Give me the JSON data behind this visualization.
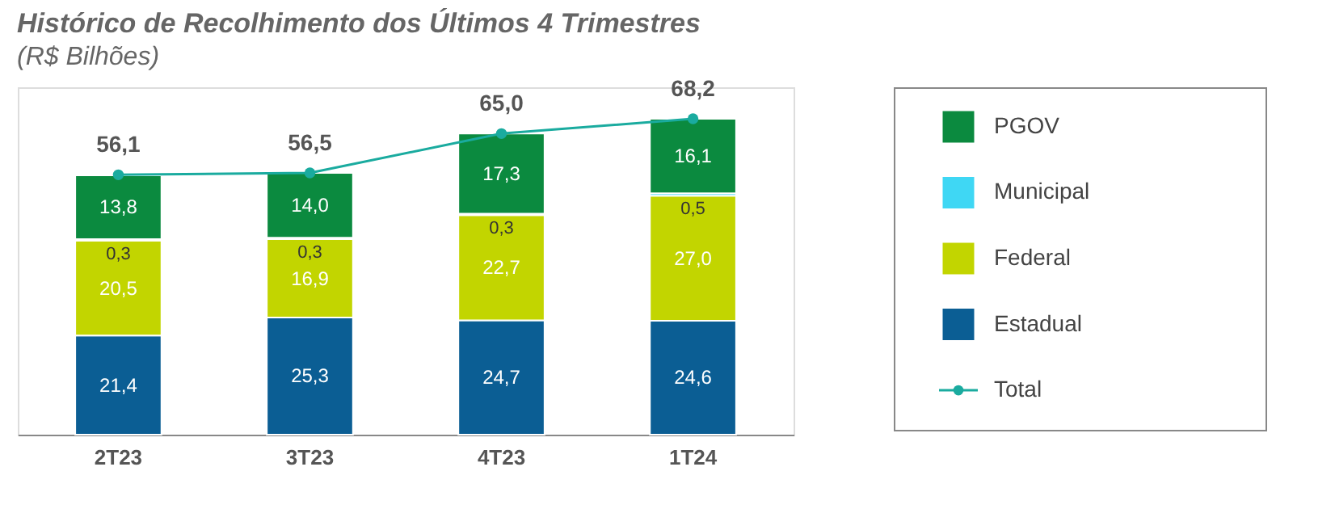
{
  "chart_data": {
    "type": "bar",
    "title": "Histórico de Recolhimento dos Últimos 4 Trimestres",
    "subtitle": "(R$ Bilhões)",
    "categories": [
      "2T23",
      "3T23",
      "4T23",
      "1T24"
    ],
    "stacked": true,
    "ylim": [
      0,
      75
    ],
    "tick_labels": "x",
    "legend": "right",
    "series": [
      {
        "name": "Estadual",
        "color": "#0b5e94",
        "values": [
          21.4,
          25.3,
          24.7,
          24.6
        ],
        "value_labels": [
          "21,4",
          "25,3",
          "24,7",
          "24,6"
        ]
      },
      {
        "name": "Federal",
        "color": "#c2d500",
        "values": [
          20.5,
          16.9,
          22.7,
          27.0
        ],
        "value_labels": [
          "20,5",
          "16,9",
          "22,7",
          "27,0"
        ]
      },
      {
        "name": "Municipal",
        "color": "#3fd7f4",
        "values": [
          0.3,
          0.3,
          0.3,
          0.5
        ],
        "value_labels": [
          "0,3",
          "0,3",
          "0,3",
          "0,5"
        ]
      },
      {
        "name": "PGOV",
        "color": "#0b8a3f",
        "values": [
          13.8,
          14.0,
          17.3,
          16.1
        ],
        "value_labels": [
          "13,8",
          "14,0",
          "17,3",
          "16,1"
        ]
      },
      {
        "name": "Total",
        "type": "line",
        "marker": "circle",
        "color": "#1aab9f",
        "values": [
          56.1,
          56.5,
          65.0,
          68.2
        ],
        "value_labels": [
          "56,1",
          "56,5",
          "65,0",
          "68,2"
        ]
      }
    ]
  }
}
